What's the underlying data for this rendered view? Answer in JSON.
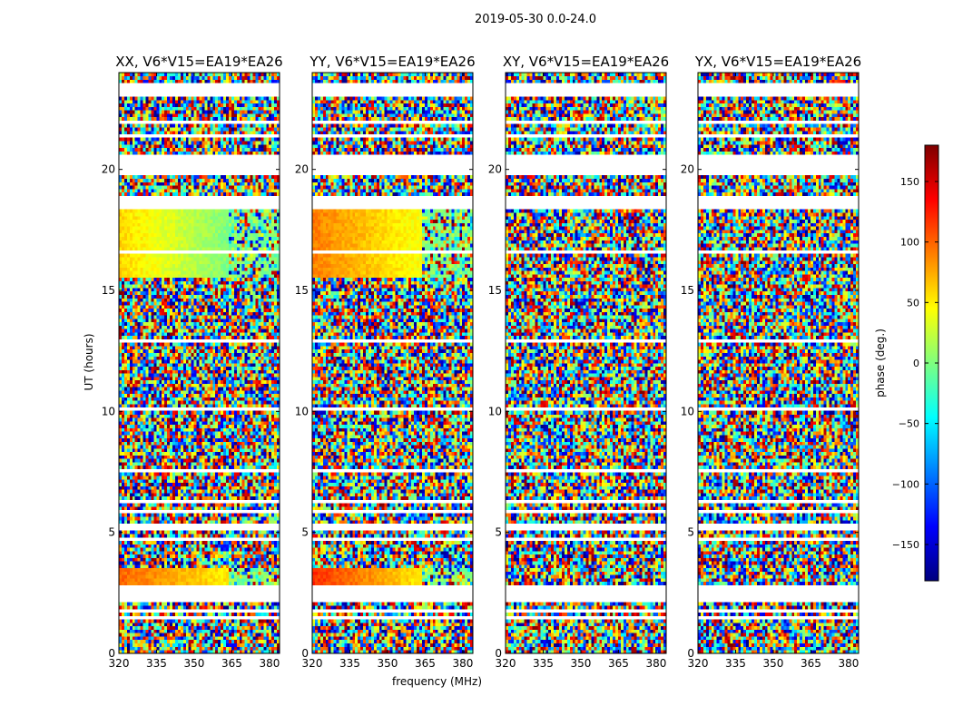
{
  "figure_title": "2019-05-30 0.0-24.0",
  "xlabel": "frequency (MHz)",
  "ylabel": "UT (hours)",
  "colorbar": {
    "label": "phase (deg.)",
    "ticks": [
      150,
      100,
      50,
      0,
      -50,
      -100,
      -150
    ],
    "tick_labels": [
      "150",
      "100",
      "50",
      "0",
      "−50",
      "−100",
      "−150"
    ],
    "range": [
      -180,
      180
    ],
    "colormap": "jet",
    "colors": [
      "#00007f",
      "#0000ff",
      "#007fff",
      "#00ffff",
      "#7fff7f",
      "#ffff00",
      "#ff7f00",
      "#ff0000",
      "#7f0000"
    ]
  },
  "panels": [
    {
      "title": "XX, V6*V15=EA19*EA26"
    },
    {
      "title": "YY, V6*V15=EA19*EA26"
    },
    {
      "title": "XY, V6*V15=EA19*EA26"
    },
    {
      "title": "YX, V6*V15=EA19*EA26"
    }
  ],
  "chart_data": {
    "type": "heatmap",
    "title": "2019-05-30 0.0-24.0",
    "panels": [
      "XX, V6*V15=EA19*EA26",
      "YY, V6*V15=EA19*EA26",
      "XY, V6*V15=EA19*EA26",
      "YX, V6*V15=EA19*EA26"
    ],
    "xlabel": "frequency (MHz)",
    "ylabel": "UT (hours)",
    "x_ticks": [
      320,
      335,
      350,
      365,
      380
    ],
    "xlim": [
      320,
      384
    ],
    "y_ticks": [
      0,
      5,
      10,
      15,
      20
    ],
    "ylim": [
      0,
      24
    ],
    "z_label": "phase (deg.)",
    "z_range": [
      -180,
      180
    ],
    "colormap": "jet",
    "flagged_gaps_ut_hours": [
      [
        0.25,
        0.35
      ],
      [
        0.95,
        1.05
      ],
      [
        1.45,
        1.55
      ],
      [
        1.7,
        1.8
      ],
      [
        2.05,
        2.85
      ],
      [
        4.65,
        4.8
      ],
      [
        5.15,
        5.3
      ],
      [
        5.8,
        5.95
      ],
      [
        6.2,
        6.35
      ],
      [
        7.45,
        7.6
      ],
      [
        7.85,
        7.95
      ],
      [
        10.0,
        10.1
      ],
      [
        12.9,
        13.05
      ],
      [
        13.8,
        13.9
      ],
      [
        15.35,
        15.45
      ],
      [
        16.55,
        16.7
      ],
      [
        17.6,
        17.7
      ],
      [
        18.35,
        18.9
      ],
      [
        19.7,
        20.55
      ],
      [
        21.35,
        21.5
      ],
      [
        21.85,
        22.0
      ],
      [
        23.0,
        23.6
      ]
    ],
    "features": [
      {
        "panel": "XX",
        "ut_range": [
          2.85,
          3.6
        ],
        "phase_deg_range": [
          50,
          100
        ],
        "note": "coherent phase band"
      },
      {
        "panel": "YY",
        "ut_range": [
          2.85,
          3.6
        ],
        "phase_deg_range": [
          50,
          120
        ],
        "note": "coherent phase band"
      },
      {
        "panel": "XX",
        "ut_range": [
          15.5,
          18.3
        ],
        "phase_deg_range": [
          0,
          60
        ],
        "note": "partially coherent"
      },
      {
        "panel": "YY",
        "ut_range": [
          15.5,
          18.3
        ],
        "phase_deg_range": [
          40,
          90
        ],
        "note": "partially coherent"
      }
    ],
    "grid": false
  }
}
